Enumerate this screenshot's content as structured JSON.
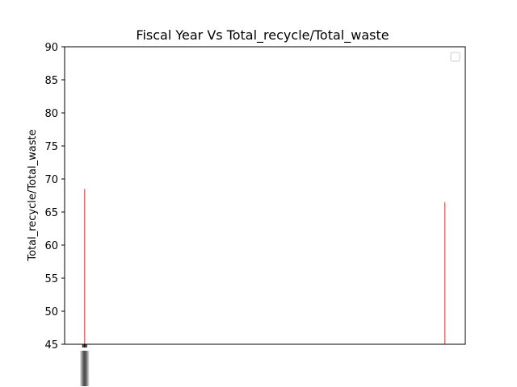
{
  "chart_data": {
    "type": "bar",
    "title": "Fiscal Year Vs Total_recycle/Total_waste",
    "xlabel": "",
    "ylabel": "Total_recycle/Total_waste",
    "ylim": [
      45,
      90
    ],
    "yticks": [
      45,
      50,
      55,
      60,
      65,
      70,
      75,
      80,
      85,
      90
    ],
    "bars": [
      {
        "x": 0.05,
        "value": 68.5,
        "color": "#e05050"
      },
      {
        "x": 0.949,
        "value": 66.5,
        "color": "#e05050"
      }
    ],
    "xtick_positions": [
      0.045,
      0.048,
      0.05,
      0.052,
      0.055
    ],
    "grid": false,
    "legend": {
      "placement": "upper right",
      "entries": []
    }
  }
}
